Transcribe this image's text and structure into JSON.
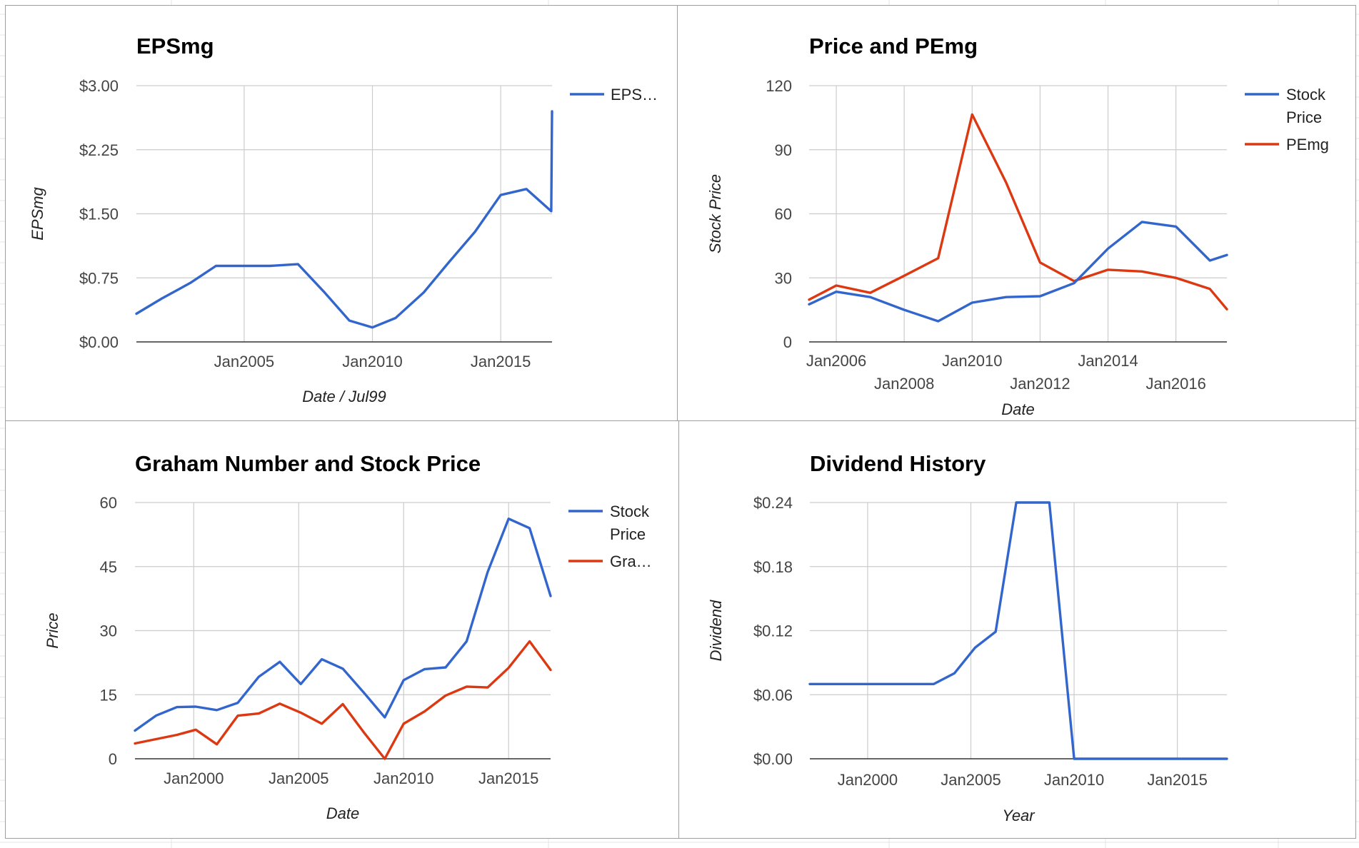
{
  "colors": {
    "blue": "#3366cc",
    "red": "#dc3912"
  },
  "chart_data": [
    {
      "id": "eps",
      "type": "line",
      "title": "EPSmg",
      "xlabel": "Date / Jul99",
      "ylabel": "EPSmg",
      "xlim": [
        2000.8,
        2017.0
      ],
      "ylim": [
        0,
        3
      ],
      "grid": true,
      "legend": "right",
      "x_ticks": [
        {
          "v": 2005.0,
          "label": "Jan2005"
        },
        {
          "v": 2010.0,
          "label": "Jan2010"
        },
        {
          "v": 2015.0,
          "label": "Jan2015"
        }
      ],
      "y_ticks": [
        {
          "v": 0,
          "label": "$0.00"
        },
        {
          "v": 0.75,
          "label": "$0.75"
        },
        {
          "v": 1.5,
          "label": "$1.50"
        },
        {
          "v": 2.25,
          "label": "$2.25"
        },
        {
          "v": 3,
          "label": "$3.00"
        }
      ],
      "series": [
        {
          "name": "EPS…",
          "color": "blue",
          "x": [
            2000.8,
            2001.8,
            2002.9,
            2003.9,
            2004.9,
            2006.0,
            2007.1,
            2008.1,
            2009.1,
            2010.0,
            2010.9,
            2012.0,
            2013.0,
            2014.0,
            2015.0,
            2016.0,
            2016.97,
            2017.0
          ],
          "y": [
            0.33,
            0.51,
            0.69,
            0.89,
            0.89,
            0.89,
            0.91,
            0.59,
            0.25,
            0.17,
            0.28,
            0.58,
            0.94,
            1.29,
            1.72,
            1.79,
            1.53,
            2.7
          ]
        }
      ]
    },
    {
      "id": "price-pe",
      "type": "line",
      "title": "Price and PEmg",
      "xlabel": "Date",
      "ylabel": "Stock Price",
      "xlim": [
        2005.2,
        2017.5
      ],
      "ylim": [
        0,
        120
      ],
      "grid": true,
      "legend": "right",
      "x_ticks": [
        {
          "v": 2006.0,
          "label": "Jan2006",
          "row": 0
        },
        {
          "v": 2008.0,
          "label": "Jan2008",
          "row": 1
        },
        {
          "v": 2010.0,
          "label": "Jan2010",
          "row": 0
        },
        {
          "v": 2012.0,
          "label": "Jan2012",
          "row": 1
        },
        {
          "v": 2014.0,
          "label": "Jan2014",
          "row": 0
        },
        {
          "v": 2016.0,
          "label": "Jan2016",
          "row": 1
        }
      ],
      "y_ticks": [
        {
          "v": 0,
          "label": "0"
        },
        {
          "v": 30,
          "label": "30"
        },
        {
          "v": 60,
          "label": "60"
        },
        {
          "v": 90,
          "label": "90"
        },
        {
          "v": 120,
          "label": "120"
        }
      ],
      "series": [
        {
          "name": "Stock Price",
          "color": "blue",
          "x": [
            2005.2,
            2006.0,
            2007.0,
            2008.0,
            2009.0,
            2010.0,
            2011.0,
            2012.0,
            2013.0,
            2014.0,
            2015.0,
            2016.0,
            2017.0,
            2017.5
          ],
          "y": [
            17.6,
            23.5,
            21,
            15,
            9.7,
            18.4,
            21,
            21.4,
            27.5,
            43.7,
            56.2,
            54,
            38.1,
            40.7
          ]
        },
        {
          "name": "PEmg",
          "color": "red",
          "x": [
            2005.2,
            2006.0,
            2007.0,
            2008.0,
            2009.0,
            2010.0,
            2011.0,
            2012.0,
            2013.0,
            2014.0,
            2015.0,
            2016.0,
            2017.0,
            2017.5
          ],
          "y": [
            19.8,
            26.4,
            23,
            31,
            39.2,
            106.5,
            74.6,
            37.2,
            28.5,
            33.8,
            33,
            30,
            24.8,
            15.3
          ]
        }
      ]
    },
    {
      "id": "graham",
      "type": "line",
      "title": "Graham Number and Stock Price",
      "xlabel": "Date",
      "ylabel": "Price",
      "xlim": [
        1997.2,
        2017.0
      ],
      "ylim": [
        0,
        60
      ],
      "grid": true,
      "legend": "right",
      "x_ticks": [
        {
          "v": 2000.0,
          "label": "Jan2000"
        },
        {
          "v": 2005.0,
          "label": "Jan2005"
        },
        {
          "v": 2010.0,
          "label": "Jan2010"
        },
        {
          "v": 2015.0,
          "label": "Jan2015"
        }
      ],
      "y_ticks": [
        {
          "v": 0,
          "label": "0"
        },
        {
          "v": 15,
          "label": "15"
        },
        {
          "v": 30,
          "label": "30"
        },
        {
          "v": 45,
          "label": "45"
        },
        {
          "v": 60,
          "label": "60"
        }
      ],
      "series": [
        {
          "name": "Stock Price",
          "color": "blue",
          "x": [
            1997.2,
            1998.2,
            1999.2,
            2000.1,
            2001.1,
            2002.1,
            2003.1,
            2004.1,
            2005.1,
            2006.1,
            2007.1,
            2008.1,
            2009.1,
            2010.0,
            2011.0,
            2012.0,
            2013.0,
            2014.0,
            2015.0,
            2016.0,
            2017.0
          ],
          "y": [
            6.6,
            10.1,
            12.1,
            12.2,
            11.4,
            13.1,
            19.2,
            22.7,
            17.5,
            23.3,
            21.1,
            15.5,
            9.7,
            18.4,
            21,
            21.4,
            27.5,
            43.7,
            56.2,
            54,
            38.1
          ]
        },
        {
          "name": "Gra…",
          "color": "red",
          "x": [
            1997.2,
            1998.2,
            1999.2,
            2000.1,
            2001.1,
            2002.1,
            2003.1,
            2004.1,
            2005.1,
            2006.1,
            2007.1,
            2008.1,
            2009.1,
            2010.0,
            2011.0,
            2012.0,
            2013.0,
            2014.0,
            2015.0,
            2016.0,
            2017.0
          ],
          "y": [
            3.6,
            4.6,
            5.6,
            6.8,
            3.4,
            10.1,
            10.6,
            12.9,
            10.8,
            8.2,
            12.8,
            6.2,
            0,
            8.2,
            11.1,
            14.8,
            16.9,
            16.7,
            21.3,
            27.5,
            20.8
          ]
        }
      ]
    },
    {
      "id": "dividend",
      "type": "line",
      "title": "Dividend History",
      "xlabel": "Year",
      "ylabel": "Dividend",
      "xlim": [
        1997.2,
        2017.4
      ],
      "ylim": [
        0,
        0.24
      ],
      "grid": true,
      "legend": "none",
      "x_ticks": [
        {
          "v": 2000.0,
          "label": "Jan2000"
        },
        {
          "v": 2005.0,
          "label": "Jan2005"
        },
        {
          "v": 2010.0,
          "label": "Jan2010"
        },
        {
          "v": 2015.0,
          "label": "Jan2015"
        }
      ],
      "y_ticks": [
        {
          "v": 0,
          "label": "$0.00"
        },
        {
          "v": 0.06,
          "label": "$0.06"
        },
        {
          "v": 0.12,
          "label": "$0.12"
        },
        {
          "v": 0.18,
          "label": "$0.18"
        },
        {
          "v": 0.24,
          "label": "$0.24"
        }
      ],
      "series": [
        {
          "name": "Dividend",
          "color": "blue",
          "x": [
            1997.2,
            1998.2,
            1999.2,
            2000.2,
            2001.2,
            2002.2,
            2003.2,
            2004.2,
            2005.2,
            2006.2,
            2007.2,
            2008.8,
            2010.0,
            2011.0,
            2012.0,
            2013.0,
            2014.0,
            2015.0,
            2016.0,
            2017.4
          ],
          "y": [
            0.07,
            0.07,
            0.07,
            0.07,
            0.07,
            0.07,
            0.07,
            0.08,
            0.104,
            0.119,
            0.24,
            0.24,
            0,
            0,
            0,
            0,
            0,
            0,
            0,
            0
          ]
        }
      ]
    }
  ]
}
